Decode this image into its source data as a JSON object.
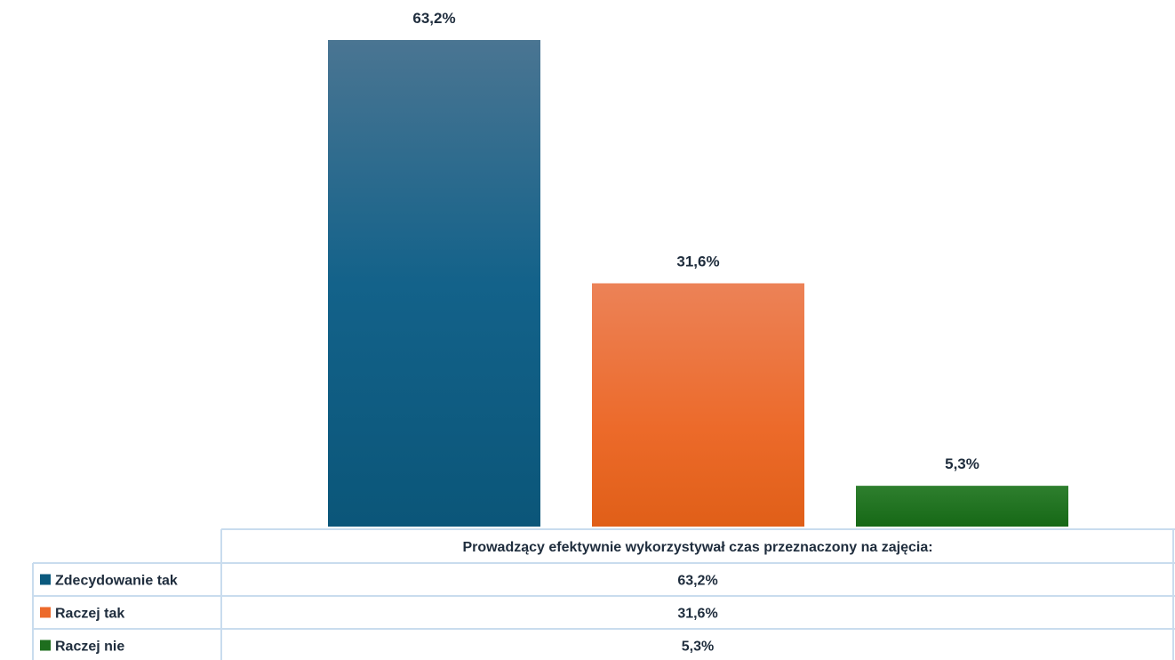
{
  "chart_data": {
    "type": "bar",
    "categories": [
      "Zdecydowanie tak",
      "Raczej tak",
      "Raczej nie"
    ],
    "values": [
      63.2,
      31.6,
      5.3
    ],
    "value_labels": [
      "63,2%",
      "31,6%",
      "5,3%"
    ],
    "colors": [
      "#0b5a7e",
      "#ec6a2b",
      "#1e6e1e"
    ],
    "title": "",
    "xlabel": "Prowadzący efektywnie wykorzystywał czas przeznaczony na zajęcia:",
    "ylabel": "",
    "ylim": [
      0,
      63.2
    ],
    "grid": false,
    "legend": "data-table"
  }
}
